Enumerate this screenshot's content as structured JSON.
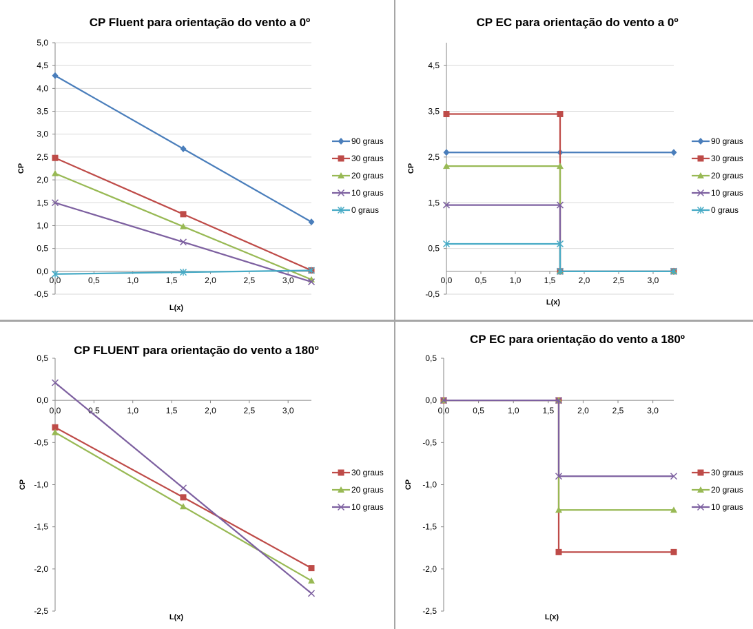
{
  "colors": {
    "90 graus": "#4a7ebb",
    "30 graus": "#be4b48",
    "20 graus": "#98b954",
    "10 graus": "#7d60a0",
    "0 graus": "#46aac5",
    "grid": "#d9d9d9",
    "divider": "#a6a6a6"
  },
  "chart_data": [
    {
      "type": "line",
      "title": "CP Fluent para orientação do vento a 0º",
      "xlabel": "L(x)",
      "ylabel": "CP",
      "xlim": [
        0,
        3.3
      ],
      "ylim": [
        -0.5,
        5.0
      ],
      "x_ticks": [
        "0,0",
        "0,5",
        "1,0",
        "1,5",
        "2,0",
        "2,5",
        "3,0"
      ],
      "y_ticks": [
        "-0,5",
        "0,0",
        "0,5",
        "1,0",
        "1,5",
        "2,0",
        "2,5",
        "3,0",
        "3,5",
        "4,0",
        "4,5",
        "5,0"
      ],
      "grid": "horizontal",
      "legend_position": "right",
      "series": [
        {
          "name": "90 graus",
          "marker": "diamond",
          "x": [
            0,
            1.65,
            3.3
          ],
          "y": [
            4.28,
            2.68,
            1.08
          ]
        },
        {
          "name": "30 graus",
          "marker": "square",
          "x": [
            0,
            1.65,
            3.3
          ],
          "y": [
            2.48,
            1.25,
            0.02
          ]
        },
        {
          "name": "20 graus",
          "marker": "triangle",
          "x": [
            0,
            1.65,
            3.3
          ],
          "y": [
            2.14,
            0.98,
            -0.18
          ]
        },
        {
          "name": "10 graus",
          "marker": "x",
          "x": [
            0,
            1.65,
            3.3
          ],
          "y": [
            1.5,
            0.64,
            -0.23
          ]
        },
        {
          "name": "0 graus",
          "marker": "star",
          "x": [
            0,
            1.65,
            3.3
          ],
          "y": [
            -0.06,
            -0.02,
            0.02
          ]
        }
      ]
    },
    {
      "type": "line",
      "title": "CP EC para orientação do vento a 0º",
      "xlabel": "L(x)",
      "ylabel": "CP",
      "xlim": [
        0,
        3.3
      ],
      "ylim": [
        -0.5,
        5.0
      ],
      "x_ticks": [
        "0,0",
        "0,5",
        "1,0",
        "1,5",
        "2,0",
        "2,5",
        "3,0"
      ],
      "y_ticks": [
        "-0,5",
        "0,5",
        "1,5",
        "2,5",
        "3,5",
        "4,5"
      ],
      "grid": "horizontal",
      "legend_position": "right",
      "series": [
        {
          "name": "90 graus",
          "marker": "diamond",
          "x": [
            0,
            1.65,
            3.3
          ],
          "y": [
            2.6,
            2.6,
            2.6
          ]
        },
        {
          "name": "30 graus",
          "marker": "square",
          "x": [
            0,
            1.65,
            1.65,
            3.3
          ],
          "y": [
            3.44,
            3.44,
            0,
            0
          ]
        },
        {
          "name": "20 graus",
          "marker": "triangle",
          "x": [
            0,
            1.65,
            1.65,
            3.3
          ],
          "y": [
            2.3,
            2.3,
            0,
            0
          ]
        },
        {
          "name": "10 graus",
          "marker": "x",
          "x": [
            0,
            1.65,
            1.65,
            3.3
          ],
          "y": [
            1.45,
            1.45,
            0,
            0
          ]
        },
        {
          "name": "0 graus",
          "marker": "star",
          "x": [
            0,
            1.65,
            1.65,
            3.3
          ],
          "y": [
            0.6,
            0.6,
            0,
            0
          ]
        }
      ]
    },
    {
      "type": "line",
      "title": "CP FLUENT para orientação do vento a 180º",
      "xlabel": "L(x)",
      "ylabel": "CP",
      "xlim": [
        0,
        3.3
      ],
      "ylim": [
        -2.5,
        0.5
      ],
      "x_ticks": [
        "0,0",
        "0,5",
        "1,0",
        "1,5",
        "2,0",
        "2,5",
        "3,0"
      ],
      "y_ticks": [
        "-2,5",
        "-2,0",
        "-1,5",
        "-1,0",
        "-0,5",
        "0,0",
        "0,5"
      ],
      "grid": "none",
      "legend_position": "right",
      "series": [
        {
          "name": "30 graus",
          "marker": "square",
          "x": [
            0,
            1.65,
            3.3
          ],
          "y": [
            -0.32,
            -1.15,
            -1.99
          ]
        },
        {
          "name": "20 graus",
          "marker": "triangle",
          "x": [
            0,
            1.65,
            3.3
          ],
          "y": [
            -0.38,
            -1.26,
            -2.14
          ]
        },
        {
          "name": "10 graus",
          "marker": "x",
          "x": [
            0,
            1.65,
            3.3
          ],
          "y": [
            0.21,
            -1.04,
            -2.29
          ]
        }
      ]
    },
    {
      "type": "line",
      "title": "CP EC para orientação do vento a 180º",
      "xlabel": "L(x)",
      "ylabel": "CP",
      "xlim": [
        0,
        3.3
      ],
      "ylim": [
        -2.5,
        0.5
      ],
      "x_ticks": [
        "0,0",
        "0,5",
        "1,0",
        "1,5",
        "2,0",
        "2,5",
        "3,0"
      ],
      "y_ticks": [
        "-2,5",
        "-2,0",
        "-1,5",
        "-1,0",
        "-0,5",
        "0,0",
        "0,5"
      ],
      "grid": "none",
      "legend_position": "right",
      "series": [
        {
          "name": "30 graus",
          "marker": "square",
          "x": [
            0,
            1.65,
            1.65,
            3.3
          ],
          "y": [
            0,
            0,
            -1.8,
            -1.8
          ]
        },
        {
          "name": "20 graus",
          "marker": "triangle",
          "x": [
            0,
            1.65,
            1.65,
            3.3
          ],
          "y": [
            0,
            0,
            -1.3,
            -1.3
          ]
        },
        {
          "name": "10 graus",
          "marker": "x",
          "x": [
            0,
            1.65,
            1.65,
            3.3
          ],
          "y": [
            0,
            0,
            -0.9,
            -0.9
          ]
        }
      ]
    }
  ]
}
